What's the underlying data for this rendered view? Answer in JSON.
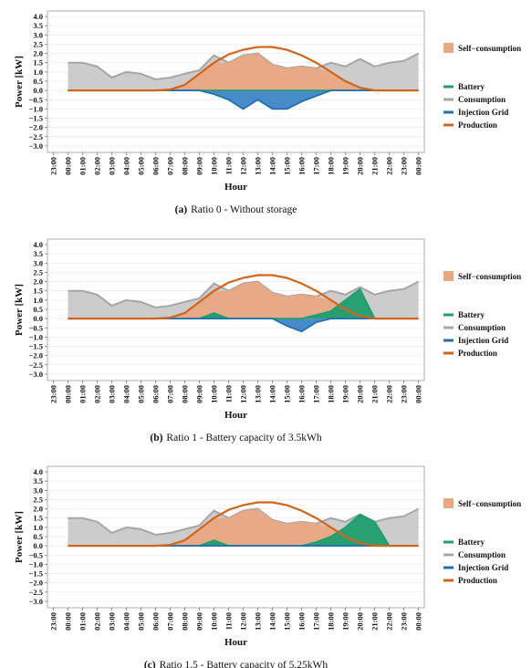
{
  "chart_data": [
    {
      "type": "area",
      "caption_label": "(a)",
      "caption": "Ratio 0 - Without storage",
      "ylabel": "Power [kW]",
      "xlabel": "Hour",
      "grid": true,
      "xlim": [
        -1.4,
        24.4
      ],
      "ylim": [
        -3.35,
        4.3
      ],
      "xticks": [
        {
          "value": -1,
          "label": "23:00"
        },
        {
          "value": 0,
          "label": "00:00"
        },
        {
          "value": 1,
          "label": "01:00"
        },
        {
          "value": 2,
          "label": "02:00"
        },
        {
          "value": 3,
          "label": "03:00"
        },
        {
          "value": 4,
          "label": "04:00"
        },
        {
          "value": 5,
          "label": "05:00"
        },
        {
          "value": 6,
          "label": "06:00"
        },
        {
          "value": 7,
          "label": "07:00"
        },
        {
          "value": 8,
          "label": "08:00"
        },
        {
          "value": 9,
          "label": "09:00"
        },
        {
          "value": 10,
          "label": "10:00"
        },
        {
          "value": 11,
          "label": "11:00"
        },
        {
          "value": 12,
          "label": "12:00"
        },
        {
          "value": 13,
          "label": "13:00"
        },
        {
          "value": 14,
          "label": "14:00"
        },
        {
          "value": 15,
          "label": "15:00"
        },
        {
          "value": 16,
          "label": "16:00"
        },
        {
          "value": 17,
          "label": "17:00"
        },
        {
          "value": 18,
          "label": "18:00"
        },
        {
          "value": 19,
          "label": "19:00"
        },
        {
          "value": 20,
          "label": "20:00"
        },
        {
          "value": 21,
          "label": "21:00"
        },
        {
          "value": 22,
          "label": "22:00"
        },
        {
          "value": 23,
          "label": "23:00"
        },
        {
          "value": 24,
          "label": "00:00"
        }
      ],
      "yticks": [
        {
          "value": 4,
          "label": "4.0"
        },
        {
          "value": 3.5,
          "label": "3.5"
        },
        {
          "value": 3,
          "label": "3.0"
        },
        {
          "value": 2.5,
          "label": "2.5"
        },
        {
          "value": 2,
          "label": "2.0"
        },
        {
          "value": 1.5,
          "label": "1.5"
        },
        {
          "value": 1,
          "label": "1.0"
        },
        {
          "value": 0.5,
          "label": "0.5"
        },
        {
          "value": 0,
          "label": "0.0"
        },
        {
          "value": -0.5,
          "label": "−0.5"
        },
        {
          "value": -1,
          "label": "−1.0"
        },
        {
          "value": -1.5,
          "label": "−1.5"
        },
        {
          "value": -2,
          "label": "−2.0"
        },
        {
          "value": -2.5,
          "label": "−2.5"
        },
        {
          "value": -3,
          "label": "−3.0"
        }
      ],
      "x": [
        0,
        1,
        2,
        3,
        4,
        5,
        6,
        7,
        8,
        9,
        10,
        11,
        12,
        13,
        14,
        15,
        16,
        17,
        18,
        19,
        20,
        21,
        22,
        23,
        24
      ],
      "series": [
        {
          "name": "Consumption",
          "color": "#a6a6a6",
          "fill": "#cccccc",
          "values": [
            1.5,
            1.5,
            1.3,
            0.7,
            1.0,
            0.9,
            0.6,
            0.7,
            0.9,
            1.1,
            1.9,
            1.5,
            1.9,
            2.0,
            1.4,
            1.2,
            1.3,
            1.2,
            1.5,
            1.3,
            1.7,
            1.3,
            1.5,
            1.6,
            2.0
          ]
        },
        {
          "name": "Self−consumption",
          "color": "#f0b48e",
          "fill": "#e9a882",
          "values": [
            0,
            0,
            0,
            0,
            0,
            0,
            0,
            0.05,
            0.3,
            0.9,
            1.5,
            1.5,
            1.9,
            2.0,
            1.4,
            1.2,
            1.3,
            1.2,
            1.0,
            0.5,
            0.15,
            0,
            0,
            0,
            0
          ]
        },
        {
          "name": "Battery",
          "color": "#1f9e6e",
          "fill": "#1f9e6e",
          "values": [
            0,
            0,
            0,
            0,
            0,
            0,
            0,
            0,
            0,
            0,
            0,
            0,
            0,
            0,
            0,
            0,
            0,
            0,
            0,
            0,
            0,
            0,
            0,
            0,
            0
          ]
        },
        {
          "name": "Injection Grid",
          "color": "#1f70b0",
          "fill": "#3d85c6",
          "values": [
            0,
            0,
            0,
            0,
            0,
            0,
            0,
            0,
            0,
            0,
            -0.2,
            -0.5,
            -1.0,
            -0.5,
            -1.0,
            -1.0,
            -0.6,
            -0.3,
            0,
            0,
            0,
            0,
            0,
            0,
            0
          ]
        },
        {
          "name": "Production",
          "color": "#d2651c",
          "values": [
            0,
            0,
            0,
            0,
            0,
            0,
            0,
            0.05,
            0.3,
            0.9,
            1.5,
            1.95,
            2.2,
            2.35,
            2.35,
            2.2,
            1.9,
            1.5,
            1.0,
            0.5,
            0.15,
            0,
            0,
            0,
            0
          ]
        }
      ]
    },
    {
      "type": "area",
      "caption_label": "(b)",
      "caption": "Ratio 1 - Battery capacity of 3.5kWh",
      "ylabel": "Power [kW]",
      "xlabel": "Hour",
      "grid": true,
      "xlim": [
        -1.4,
        24.4
      ],
      "ylim": [
        -3.35,
        4.3
      ],
      "xticks": [
        {
          "value": -1,
          "label": "23:00"
        },
        {
          "value": 0,
          "label": "00:00"
        },
        {
          "value": 1,
          "label": "01:00"
        },
        {
          "value": 2,
          "label": "02:00"
        },
        {
          "value": 3,
          "label": "03:00"
        },
        {
          "value": 4,
          "label": "04:00"
        },
        {
          "value": 5,
          "label": "05:00"
        },
        {
          "value": 6,
          "label": "06:00"
        },
        {
          "value": 7,
          "label": "07:00"
        },
        {
          "value": 8,
          "label": "08:00"
        },
        {
          "value": 9,
          "label": "09:00"
        },
        {
          "value": 10,
          "label": "10:00"
        },
        {
          "value": 11,
          "label": "11:00"
        },
        {
          "value": 12,
          "label": "12:00"
        },
        {
          "value": 13,
          "label": "13:00"
        },
        {
          "value": 14,
          "label": "14:00"
        },
        {
          "value": 15,
          "label": "15:00"
        },
        {
          "value": 16,
          "label": "16:00"
        },
        {
          "value": 17,
          "label": "17:00"
        },
        {
          "value": 18,
          "label": "18:00"
        },
        {
          "value": 19,
          "label": "19:00"
        },
        {
          "value": 20,
          "label": "20:00"
        },
        {
          "value": 21,
          "label": "21:00"
        },
        {
          "value": 22,
          "label": "22:00"
        },
        {
          "value": 23,
          "label": "23:00"
        },
        {
          "value": 24,
          "label": "00:00"
        }
      ],
      "yticks": [
        {
          "value": 4,
          "label": "4.0"
        },
        {
          "value": 3.5,
          "label": "3.5"
        },
        {
          "value": 3,
          "label": "3.0"
        },
        {
          "value": 2.5,
          "label": "2.5"
        },
        {
          "value": 2,
          "label": "2.0"
        },
        {
          "value": 1.5,
          "label": "1.5"
        },
        {
          "value": 1,
          "label": "1.0"
        },
        {
          "value": 0.5,
          "label": "0.5"
        },
        {
          "value": 0,
          "label": "0.0"
        },
        {
          "value": -0.5,
          "label": "−0.5"
        },
        {
          "value": -1,
          "label": "−1.0"
        },
        {
          "value": -1.5,
          "label": "−1.5"
        },
        {
          "value": -2,
          "label": "−2.0"
        },
        {
          "value": -2.5,
          "label": "−2.5"
        },
        {
          "value": -3,
          "label": "−3.0"
        }
      ],
      "x": [
        0,
        1,
        2,
        3,
        4,
        5,
        6,
        7,
        8,
        9,
        10,
        11,
        12,
        13,
        14,
        15,
        16,
        17,
        18,
        19,
        20,
        21,
        22,
        23,
        24
      ],
      "series": [
        {
          "name": "Consumption",
          "color": "#a6a6a6",
          "fill": "#cccccc",
          "values": [
            1.5,
            1.5,
            1.3,
            0.7,
            1.0,
            0.9,
            0.6,
            0.7,
            0.9,
            1.1,
            1.9,
            1.5,
            1.9,
            2.0,
            1.4,
            1.2,
            1.3,
            1.2,
            1.5,
            1.3,
            1.7,
            1.3,
            1.5,
            1.6,
            2.0
          ]
        },
        {
          "name": "Self−consumption",
          "color": "#f0b48e",
          "fill": "#e9a882",
          "values": [
            0,
            0,
            0,
            0,
            0,
            0,
            0,
            0.05,
            0.3,
            0.9,
            1.5,
            1.5,
            1.9,
            2.0,
            1.4,
            1.2,
            1.3,
            1.2,
            1.0,
            0.5,
            0.15,
            0,
            0,
            0,
            0
          ]
        },
        {
          "name": "Battery",
          "color": "#1f9e6e",
          "fill": "#1f9e6e",
          "values": [
            0,
            0,
            0,
            0,
            0,
            0,
            0,
            0,
            0,
            0,
            0.3,
            0,
            0,
            0,
            0,
            0,
            0,
            0.2,
            0.4,
            1.0,
            1.6,
            0,
            0,
            0,
            0
          ]
        },
        {
          "name": "Injection Grid",
          "color": "#1f70b0",
          "fill": "#3d85c6",
          "values": [
            0,
            0,
            0,
            0,
            0,
            0,
            0,
            0,
            0,
            0,
            0,
            0,
            0,
            0,
            0,
            -0.4,
            -0.7,
            -0.2,
            0,
            0,
            0,
            0,
            0,
            0,
            0
          ]
        },
        {
          "name": "Production",
          "color": "#d2651c",
          "values": [
            0,
            0,
            0,
            0,
            0,
            0,
            0,
            0.05,
            0.3,
            0.9,
            1.5,
            1.95,
            2.2,
            2.35,
            2.35,
            2.2,
            1.9,
            1.5,
            1.0,
            0.5,
            0.15,
            0,
            0,
            0,
            0
          ]
        }
      ]
    },
    {
      "type": "area",
      "caption_label": "(c)",
      "caption": "Ratio 1.5 - Battery capacity of 5.25kWh",
      "ylabel": "Power [kW]",
      "xlabel": "Hour",
      "grid": true,
      "xlim": [
        -1.4,
        24.4
      ],
      "ylim": [
        -3.35,
        4.3
      ],
      "xticks": [
        {
          "value": -1,
          "label": "23:00"
        },
        {
          "value": 0,
          "label": "00:00"
        },
        {
          "value": 1,
          "label": "01:00"
        },
        {
          "value": 2,
          "label": "02:00"
        },
        {
          "value": 3,
          "label": "03:00"
        },
        {
          "value": 4,
          "label": "04:00"
        },
        {
          "value": 5,
          "label": "05:00"
        },
        {
          "value": 6,
          "label": "06:00"
        },
        {
          "value": 7,
          "label": "07:00"
        },
        {
          "value": 8,
          "label": "08:00"
        },
        {
          "value": 9,
          "label": "09:00"
        },
        {
          "value": 10,
          "label": "10:00"
        },
        {
          "value": 11,
          "label": "11:00"
        },
        {
          "value": 12,
          "label": "12:00"
        },
        {
          "value": 13,
          "label": "13:00"
        },
        {
          "value": 14,
          "label": "14:00"
        },
        {
          "value": 15,
          "label": "15:00"
        },
        {
          "value": 16,
          "label": "16:00"
        },
        {
          "value": 17,
          "label": "17:00"
        },
        {
          "value": 18,
          "label": "18:00"
        },
        {
          "value": 19,
          "label": "19:00"
        },
        {
          "value": 20,
          "label": "20:00"
        },
        {
          "value": 21,
          "label": "21:00"
        },
        {
          "value": 22,
          "label": "22:00"
        },
        {
          "value": 23,
          "label": "23:00"
        },
        {
          "value": 24,
          "label": "00:00"
        }
      ],
      "yticks": [
        {
          "value": 4,
          "label": "4.0"
        },
        {
          "value": 3.5,
          "label": "3.5"
        },
        {
          "value": 3,
          "label": "3.0"
        },
        {
          "value": 2.5,
          "label": "2.5"
        },
        {
          "value": 2,
          "label": "2.0"
        },
        {
          "value": 1.5,
          "label": "1.5"
        },
        {
          "value": 1,
          "label": "1.0"
        },
        {
          "value": 0.5,
          "label": "0.5"
        },
        {
          "value": 0,
          "label": "0.0"
        },
        {
          "value": -0.5,
          "label": "−0.5"
        },
        {
          "value": -1,
          "label": "−1.0"
        },
        {
          "value": -1.5,
          "label": "−1.5"
        },
        {
          "value": -2,
          "label": "−2.0"
        },
        {
          "value": -2.5,
          "label": "−2.5"
        },
        {
          "value": -3,
          "label": "−3.0"
        }
      ],
      "x": [
        0,
        1,
        2,
        3,
        4,
        5,
        6,
        7,
        8,
        9,
        10,
        11,
        12,
        13,
        14,
        15,
        16,
        17,
        18,
        19,
        20,
        21,
        22,
        23,
        24
      ],
      "series": [
        {
          "name": "Consumption",
          "color": "#a6a6a6",
          "fill": "#cccccc",
          "values": [
            1.5,
            1.5,
            1.3,
            0.7,
            1.0,
            0.9,
            0.6,
            0.7,
            0.9,
            1.1,
            1.9,
            1.5,
            1.9,
            2.0,
            1.4,
            1.2,
            1.3,
            1.2,
            1.5,
            1.3,
            1.7,
            1.3,
            1.5,
            1.6,
            2.0
          ]
        },
        {
          "name": "Self−consumption",
          "color": "#f0b48e",
          "fill": "#e9a882",
          "values": [
            0,
            0,
            0,
            0,
            0,
            0,
            0,
            0.05,
            0.3,
            0.9,
            1.5,
            1.5,
            1.9,
            2.0,
            1.4,
            1.2,
            1.3,
            1.2,
            1.0,
            0.5,
            0.15,
            0,
            0,
            0,
            0
          ]
        },
        {
          "name": "Battery",
          "color": "#1f9e6e",
          "fill": "#1f9e6e",
          "values": [
            0,
            0,
            0,
            0,
            0,
            0,
            0,
            0,
            0,
            0,
            0.3,
            0,
            0,
            0,
            0,
            0,
            0,
            0.2,
            0.5,
            1.0,
            1.7,
            1.3,
            0,
            0,
            0
          ]
        },
        {
          "name": "Injection Grid",
          "color": "#1f70b0",
          "fill": "#3d85c6",
          "values": [
            0,
            0,
            0,
            0,
            0,
            0,
            0,
            0,
            0,
            0,
            0,
            0,
            0,
            0,
            0,
            0,
            0,
            0,
            0,
            0,
            0,
            0,
            0,
            0,
            0
          ]
        },
        {
          "name": "Production",
          "color": "#d2651c",
          "values": [
            0,
            0,
            0,
            0,
            0,
            0,
            0,
            0.05,
            0.3,
            0.9,
            1.5,
            1.95,
            2.2,
            2.35,
            2.35,
            2.2,
            1.9,
            1.5,
            1.0,
            0.5,
            0.15,
            0,
            0,
            0,
            0
          ]
        }
      ]
    }
  ]
}
